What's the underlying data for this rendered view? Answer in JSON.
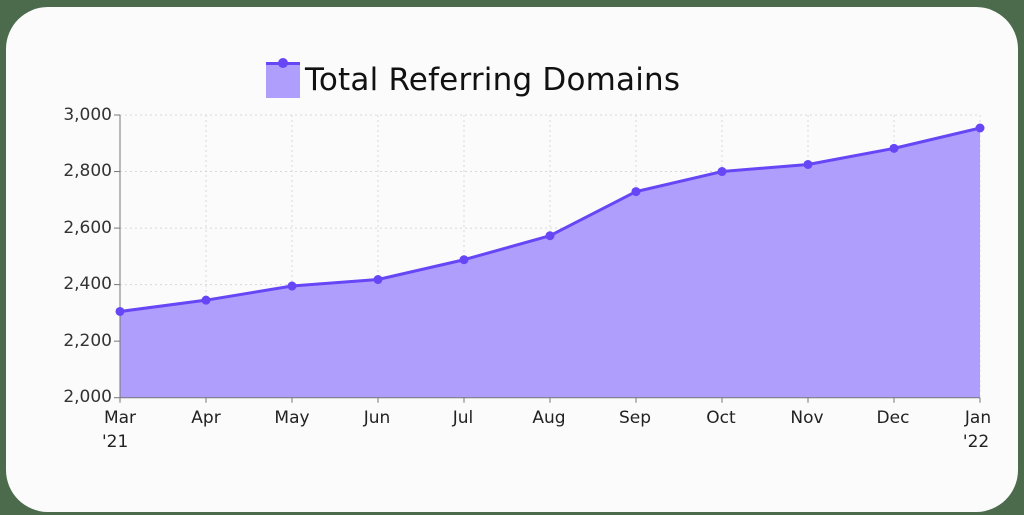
{
  "chart_data": {
    "type": "area",
    "title": "",
    "legend": [
      {
        "label": "Total Referring Domains",
        "color": "#b09efd",
        "line_color": "#6746f6"
      }
    ],
    "legend_position": "top",
    "categories": [
      "Mar '21",
      "Apr",
      "May",
      "Jun",
      "Jul",
      "Aug",
      "Sep",
      "Oct",
      "Nov",
      "Dec",
      "Jan '22"
    ],
    "series": [
      {
        "name": "Total Referring Domains",
        "values": [
          2305,
          2345,
          2395,
          2418,
          2488,
          2573,
          2729,
          2800,
          2825,
          2882,
          2954
        ]
      }
    ],
    "xlabel": "",
    "ylabel": "",
    "ylim": [
      2000,
      3000
    ],
    "yticks": [
      "2,000",
      "2,200",
      "2,400",
      "2,600",
      "2,800",
      "3,000"
    ],
    "grid": true
  },
  "legend": {
    "label": "Total Referring Domains"
  },
  "xaxis": {
    "labels": [
      {
        "line1": "Mar",
        "line2": "'21"
      },
      {
        "line1": "Apr",
        "line2": ""
      },
      {
        "line1": "May",
        "line2": ""
      },
      {
        "line1": "Jun",
        "line2": ""
      },
      {
        "line1": "Jul",
        "line2": ""
      },
      {
        "line1": "Aug",
        "line2": ""
      },
      {
        "line1": "Sep",
        "line2": ""
      },
      {
        "line1": "Oct",
        "line2": ""
      },
      {
        "line1": "Nov",
        "line2": ""
      },
      {
        "line1": "Dec",
        "line2": ""
      },
      {
        "line1": "Jan",
        "line2": "'22"
      }
    ]
  },
  "yaxis": {
    "labels": [
      "3,000",
      "2,800",
      "2,600",
      "2,400",
      "2,200",
      "2,000"
    ]
  },
  "colors": {
    "fill": "#b09efd",
    "line": "#6746f6",
    "grid": "#d8d8d8",
    "axis": "#777777",
    "background": "#4b6b4c",
    "card": "#fbfbfb"
  }
}
